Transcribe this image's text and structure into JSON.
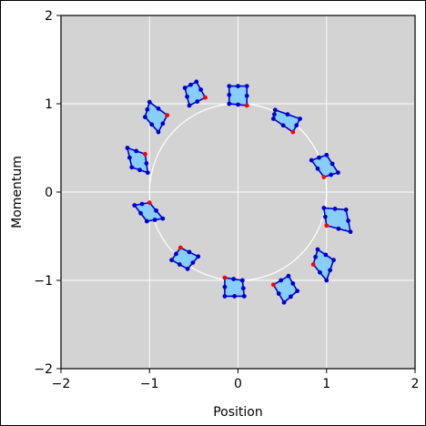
{
  "chart_data": {
    "type": "scatter",
    "title": "",
    "xlabel": "Position",
    "ylabel": "Momentum",
    "xlim": [
      -2,
      2
    ],
    "ylim": [
      -2,
      2
    ],
    "xticks": [
      -2,
      -1,
      0,
      1,
      2
    ],
    "yticks": [
      -2,
      -1,
      0,
      1,
      2
    ],
    "xtick_labels": [
      "−2",
      "−1",
      "0",
      "1",
      "2"
    ],
    "ytick_labels": [
      "−2",
      "−1",
      "0",
      "1",
      "2"
    ],
    "grid": true,
    "background": "#d3d3d3",
    "circle": {
      "center": [
        0,
        0
      ],
      "radius": 1,
      "color": "#ffffff"
    },
    "cell_fill": "#87cefa",
    "cell_edge": "#0000cd",
    "marker_color": "#0000cd",
    "highlight_color": "#ff0000",
    "cells": [
      {
        "points": [
          [
            -0.1,
            1.2
          ],
          [
            0.1,
            1.2
          ],
          [
            0.1,
            0.98
          ],
          [
            -0.1,
            1.0
          ]
        ],
        "highlight": 2
      },
      {
        "points": [
          [
            0.42,
            0.93
          ],
          [
            0.7,
            0.83
          ],
          [
            0.62,
            0.68
          ],
          [
            0.4,
            0.83
          ]
        ],
        "highlight": 2
      },
      {
        "points": [
          [
            0.83,
            0.36
          ],
          [
            1.0,
            0.42
          ],
          [
            1.13,
            0.22
          ],
          [
            0.97,
            0.17
          ]
        ],
        "highlight": 3
      },
      {
        "points": [
          [
            0.97,
            -0.18
          ],
          [
            1.22,
            -0.2
          ],
          [
            1.27,
            -0.45
          ],
          [
            1.0,
            -0.38
          ]
        ],
        "highlight": 3
      },
      {
        "points": [
          [
            0.9,
            -0.65
          ],
          [
            1.08,
            -0.77
          ],
          [
            1.0,
            -1.0
          ],
          [
            0.85,
            -0.82
          ]
        ],
        "highlight": 3
      },
      {
        "points": [
          [
            0.57,
            -0.95
          ],
          [
            0.67,
            -1.12
          ],
          [
            0.52,
            -1.25
          ],
          [
            0.4,
            -1.05
          ]
        ],
        "highlight": 3
      },
      {
        "points": [
          [
            -0.15,
            -0.97
          ],
          [
            0.05,
            -1.0
          ],
          [
            0.07,
            -1.18
          ],
          [
            -0.15,
            -1.18
          ]
        ],
        "highlight": 0
      },
      {
        "points": [
          [
            -0.65,
            -0.63
          ],
          [
            -0.45,
            -0.73
          ],
          [
            -0.57,
            -0.87
          ],
          [
            -0.75,
            -0.77
          ]
        ],
        "highlight": 0
      },
      {
        "points": [
          [
            -1.17,
            -0.15
          ],
          [
            -1.0,
            -0.12
          ],
          [
            -0.85,
            -0.3
          ],
          [
            -1.03,
            -0.33
          ]
        ],
        "highlight": 1
      },
      {
        "points": [
          [
            -1.25,
            0.5
          ],
          [
            -1.05,
            0.43
          ],
          [
            -1.02,
            0.22
          ],
          [
            -1.2,
            0.28
          ]
        ],
        "highlight": 1
      },
      {
        "points": [
          [
            -1.0,
            1.02
          ],
          [
            -0.8,
            0.87
          ],
          [
            -0.9,
            0.68
          ],
          [
            -1.05,
            0.85
          ]
        ],
        "highlight": 1
      },
      {
        "points": [
          [
            -0.6,
            1.18
          ],
          [
            -0.47,
            1.25
          ],
          [
            -0.37,
            1.07
          ],
          [
            -0.55,
            0.98
          ]
        ],
        "highlight": 2
      }
    ]
  }
}
